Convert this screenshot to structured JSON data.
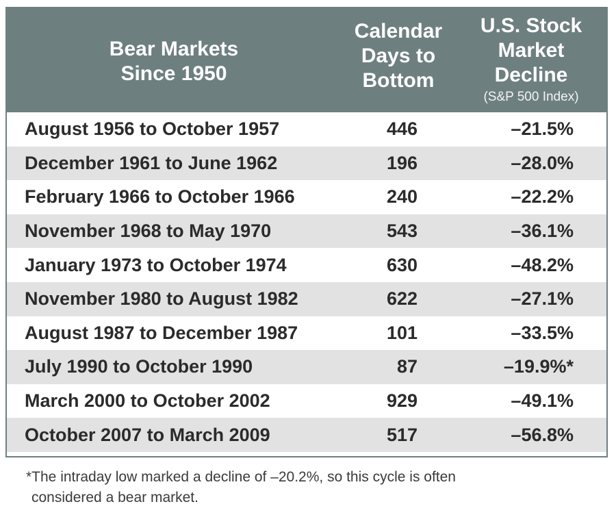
{
  "table": {
    "headers": {
      "period": [
        "Bear Markets",
        "Since 1950"
      ],
      "days": [
        "Calendar",
        "Days to",
        "Bottom"
      ],
      "decline": [
        "U.S. Stock",
        "Market",
        "Decline"
      ],
      "decline_sub": "(S&P 500 Index)"
    },
    "rows": [
      {
        "period": "August 1956 to October 1957",
        "days": "446",
        "decline": "–21.5%"
      },
      {
        "period": "December 1961 to June 1962",
        "days": "196",
        "decline": "–28.0%"
      },
      {
        "period": "February 1966 to October 1966",
        "days": "240",
        "decline": "–22.2%"
      },
      {
        "period": "November 1968 to May 1970",
        "days": "543",
        "decline": "–36.1%"
      },
      {
        "period": "January 1973 to October 1974",
        "days": "630",
        "decline": "–48.2%"
      },
      {
        "period": "November 1980 to August 1982",
        "days": "622",
        "decline": "–27.1%"
      },
      {
        "period": "August 1987 to December 1987",
        "days": "101",
        "decline": "–33.5%"
      },
      {
        "period": "July 1990 to October 1990",
        "days": "87",
        "decline": "–19.9%*"
      },
      {
        "period": "March 2000 to October 2002",
        "days": "929",
        "decline": "–49.1%"
      },
      {
        "period": "October 2007 to March 2009",
        "days": "517",
        "decline": "–56.8%"
      }
    ]
  },
  "footnote": {
    "lines": [
      "*The intraday low marked a decline of –20.2%, so this cycle is often",
      "considered a bear market."
    ]
  },
  "colors": {
    "header_bg": "#6e7f80",
    "header_text": "#ffffff",
    "row_shade": "#e2e2e2",
    "row_plain": "#ffffff",
    "text": "#2b2b2b"
  }
}
